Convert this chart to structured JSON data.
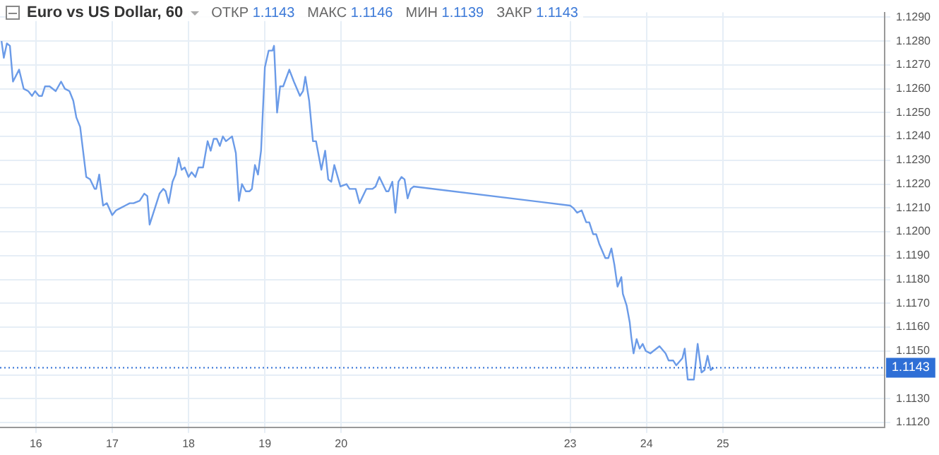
{
  "chart_data": {
    "type": "line",
    "title": "Euro vs US Dollar, 60",
    "annotations": [
      "ОТКР 1.1143",
      "МАКС 1.1146",
      "МИН 1.1139",
      "ЗАКР 1.1143"
    ],
    "series": [
      {
        "color": "#6b9be8",
        "x": [
          15.55,
          15.58,
          15.62,
          15.66,
          15.7,
          15.78,
          15.84,
          15.9,
          15.95,
          15.99,
          16.04,
          16.08,
          16.12,
          16.18,
          16.26,
          16.33,
          16.38,
          16.44,
          16.49,
          16.53,
          16.58,
          16.66,
          16.71,
          16.77,
          16.79,
          16.83,
          16.88,
          16.93,
          17.0,
          17.05,
          17.11,
          17.17,
          17.23,
          17.28,
          17.36,
          17.42,
          17.46,
          17.49,
          17.56,
          17.62,
          17.67,
          17.7,
          17.74,
          17.79,
          17.83,
          17.87,
          17.91,
          17.95,
          18.0,
          18.04,
          18.09,
          18.13,
          18.19,
          18.25,
          18.29,
          18.33,
          18.37,
          18.41,
          18.45,
          18.49,
          18.57,
          18.62,
          18.66,
          18.7,
          18.75,
          18.8,
          18.83,
          18.87,
          18.91,
          18.95,
          19.0,
          19.05,
          19.1,
          19.12,
          19.16,
          19.2,
          19.24,
          19.32,
          19.38,
          19.46,
          19.5,
          19.53,
          19.58,
          19.63,
          19.67,
          19.74,
          19.79,
          19.83,
          19.87,
          19.91,
          19.99,
          20.07,
          20.11,
          20.19,
          20.24,
          20.33,
          20.41,
          20.45,
          20.5,
          20.59,
          20.62,
          20.67,
          20.71,
          20.75,
          20.79,
          20.83,
          20.87,
          20.91,
          20.95,
          23.0,
          23.04,
          23.09,
          23.15,
          23.21,
          23.25,
          23.3,
          23.34,
          23.38,
          23.46,
          23.5,
          23.54,
          23.58,
          23.62,
          23.67,
          23.69,
          23.74,
          23.78,
          23.8,
          23.83,
          23.87,
          23.91,
          23.95,
          23.99,
          24.05,
          24.09,
          24.17,
          24.25,
          24.29,
          24.35,
          24.39,
          24.47,
          24.5,
          24.54,
          24.58,
          24.62,
          24.67,
          24.72,
          24.76,
          24.8,
          24.84,
          24.88
        ],
        "values": [
          1.128,
          1.1273,
          1.1279,
          1.1278,
          1.1263,
          1.1268,
          1.126,
          1.1259,
          1.1257,
          1.1259,
          1.1257,
          1.1257,
          1.1261,
          1.1261,
          1.1259,
          1.1263,
          1.126,
          1.1259,
          1.1255,
          1.1248,
          1.1244,
          1.1223,
          1.1222,
          1.1218,
          1.1218,
          1.1224,
          1.1211,
          1.1212,
          1.1207,
          1.1209,
          1.121,
          1.1211,
          1.1212,
          1.1212,
          1.1213,
          1.1216,
          1.1215,
          1.1203,
          1.121,
          1.1216,
          1.1218,
          1.1217,
          1.1212,
          1.1221,
          1.1224,
          1.1231,
          1.1226,
          1.1227,
          1.1223,
          1.1225,
          1.1223,
          1.1227,
          1.1227,
          1.1238,
          1.1234,
          1.1239,
          1.1239,
          1.1236,
          1.124,
          1.1238,
          1.124,
          1.1233,
          1.1213,
          1.122,
          1.1217,
          1.1217,
          1.1218,
          1.1228,
          1.1224,
          1.1234,
          1.1269,
          1.1276,
          1.1276,
          1.1278,
          1.125,
          1.1261,
          1.1261,
          1.1268,
          1.1263,
          1.1257,
          1.1259,
          1.1265,
          1.1255,
          1.1238,
          1.1238,
          1.1226,
          1.1234,
          1.1222,
          1.1221,
          1.1228,
          1.1219,
          1.122,
          1.1218,
          1.1218,
          1.1212,
          1.1218,
          1.1218,
          1.1219,
          1.1223,
          1.1217,
          1.1217,
          1.1221,
          1.1208,
          1.1221,
          1.1223,
          1.1222,
          1.1214,
          1.1218,
          1.1219,
          1.1211,
          1.121,
          1.1208,
          1.1209,
          1.1204,
          1.1204,
          1.1199,
          1.1199,
          1.1195,
          1.1189,
          1.1189,
          1.1193,
          1.1186,
          1.1177,
          1.1181,
          1.1174,
          1.1169,
          1.1162,
          1.1156,
          1.1149,
          1.1155,
          1.1151,
          1.1153,
          1.115,
          1.1149,
          1.115,
          1.1152,
          1.1149,
          1.1146,
          1.1146,
          1.1144,
          1.1147,
          1.1151,
          1.1138,
          1.1138,
          1.1138,
          1.1153,
          1.1141,
          1.1142,
          1.1148,
          1.1142,
          1.1143
        ]
      }
    ],
    "xlim": [
      15.53,
      27.12
    ],
    "xticks": [
      16,
      17,
      18,
      19,
      20,
      23,
      24,
      25
    ],
    "ylim": [
      1.1118,
      1.1292
    ],
    "yticks": [
      {
        "value": 1.112,
        "label": "1.1120"
      },
      {
        "value": 1.113,
        "label": "1.1130"
      },
      {
        "value": 1.114,
        "label": null
      },
      {
        "value": 1.115,
        "label": "1.1150"
      },
      {
        "value": 1.116,
        "label": "1.1160"
      },
      {
        "value": 1.117,
        "label": "1.1170"
      },
      {
        "value": 1.118,
        "label": "1.1180"
      },
      {
        "value": 1.119,
        "label": "1.1190"
      },
      {
        "value": 1.12,
        "label": "1.1200"
      },
      {
        "value": 1.121,
        "label": "1.1210"
      },
      {
        "value": 1.122,
        "label": "1.1220"
      },
      {
        "value": 1.123,
        "label": "1.1230"
      },
      {
        "value": 1.124,
        "label": "1.1240"
      },
      {
        "value": 1.125,
        "label": "1.1250"
      },
      {
        "value": 1.126,
        "label": "1.1260"
      },
      {
        "value": 1.127,
        "label": "1.1270"
      },
      {
        "value": 1.128,
        "label": "1.1280"
      },
      {
        "value": 1.129,
        "label": "1.1290"
      }
    ],
    "ref_lines": [
      {
        "axis": "y",
        "value": 1.1143,
        "label": "1.1143",
        "color": "#2f6fd6",
        "line_style": "dotted"
      }
    ],
    "grid": true,
    "legend": false,
    "marker": "none",
    "line_style": "solid"
  }
}
